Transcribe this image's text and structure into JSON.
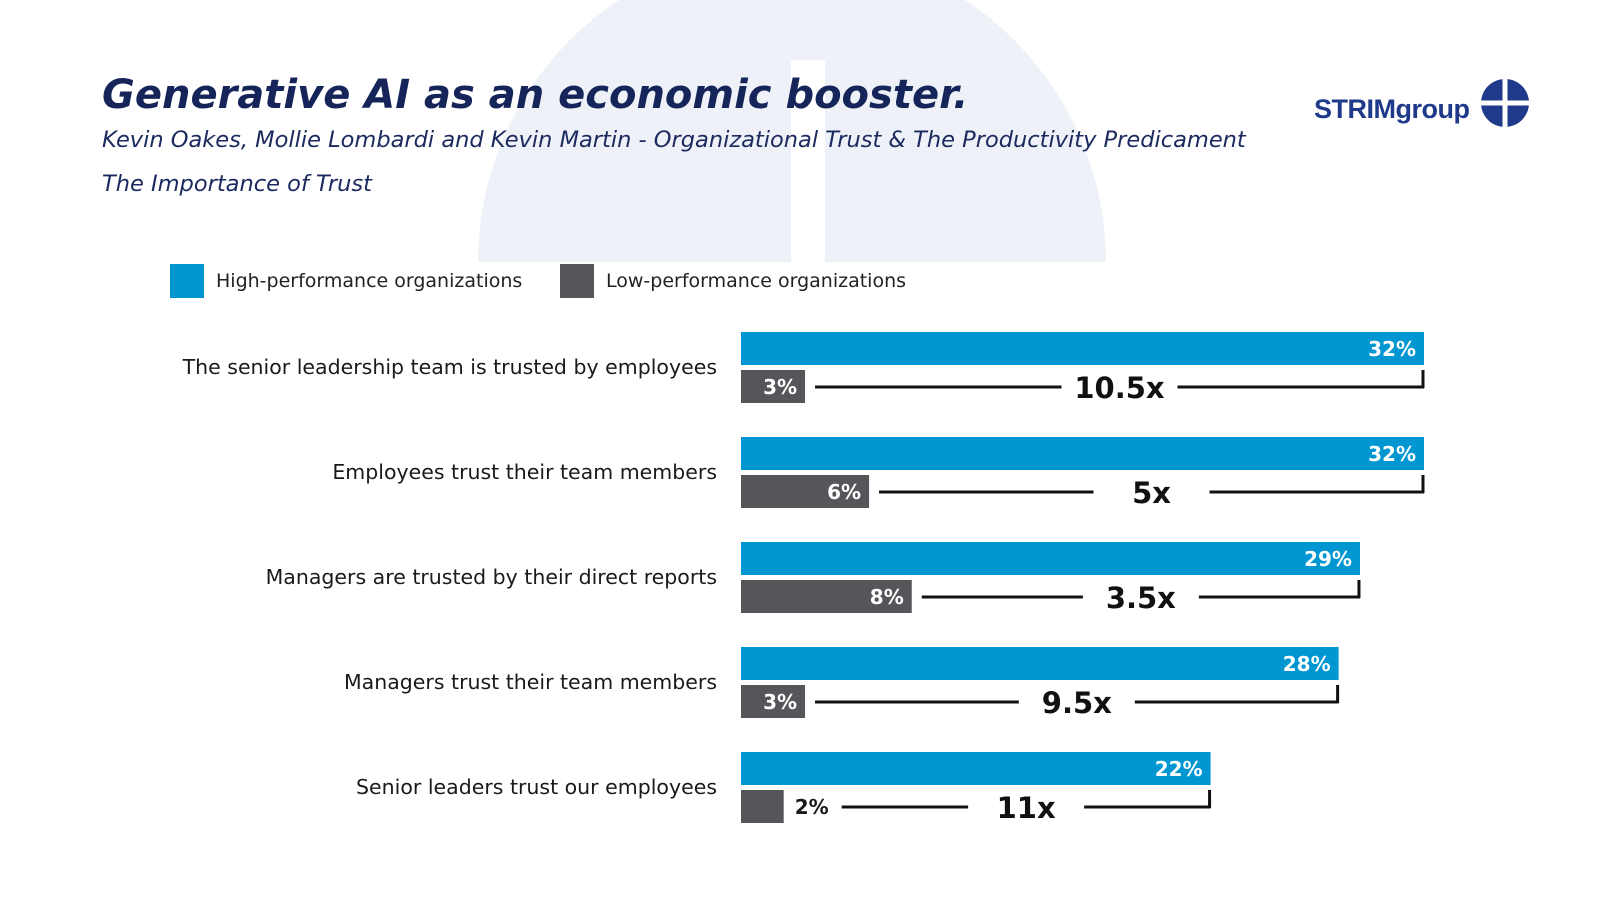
{
  "header": {
    "title": "Generative AI as an economic booster.",
    "subtitle": "Kevin Oakes, Mollie Lombardi and Kevin Martin - Organizational Trust & The Productivity Predicament",
    "subtitle2": "The Importance of Trust"
  },
  "logo": {
    "text_main": "STRIM",
    "text_group": "group"
  },
  "colors": {
    "high": "#0096D1",
    "low": "#555659",
    "title": "#162559",
    "ratio_line": "#111111"
  },
  "legend": {
    "high_label": "High-performance organizations",
    "low_label": "Low-performance organizations"
  },
  "chart_data": {
    "type": "bar",
    "orientation": "horizontal",
    "title": "The Importance of Trust",
    "categories": [
      "The senior leadership team is trusted by employees",
      "Employees trust their team members",
      "Managers are trusted by their direct reports",
      "Managers trust their team members",
      "Senior leaders trust our employees"
    ],
    "series": [
      {
        "name": "High-performance organizations",
        "values": [
          32,
          32,
          29,
          28,
          22
        ],
        "labels": [
          "32%",
          "32%",
          "29%",
          "28%",
          "22%"
        ]
      },
      {
        "name": "Low-performance organizations",
        "values": [
          3,
          6,
          8,
          3,
          2
        ],
        "labels": [
          "3%",
          "6%",
          "8%",
          "3%",
          "2%"
        ]
      }
    ],
    "ratios": [
      "10.5x",
      "5x",
      "3.5x",
      "9.5x",
      "11x"
    ],
    "xlim": [
      0,
      32
    ],
    "grid": false,
    "legend_position": "top-left"
  }
}
